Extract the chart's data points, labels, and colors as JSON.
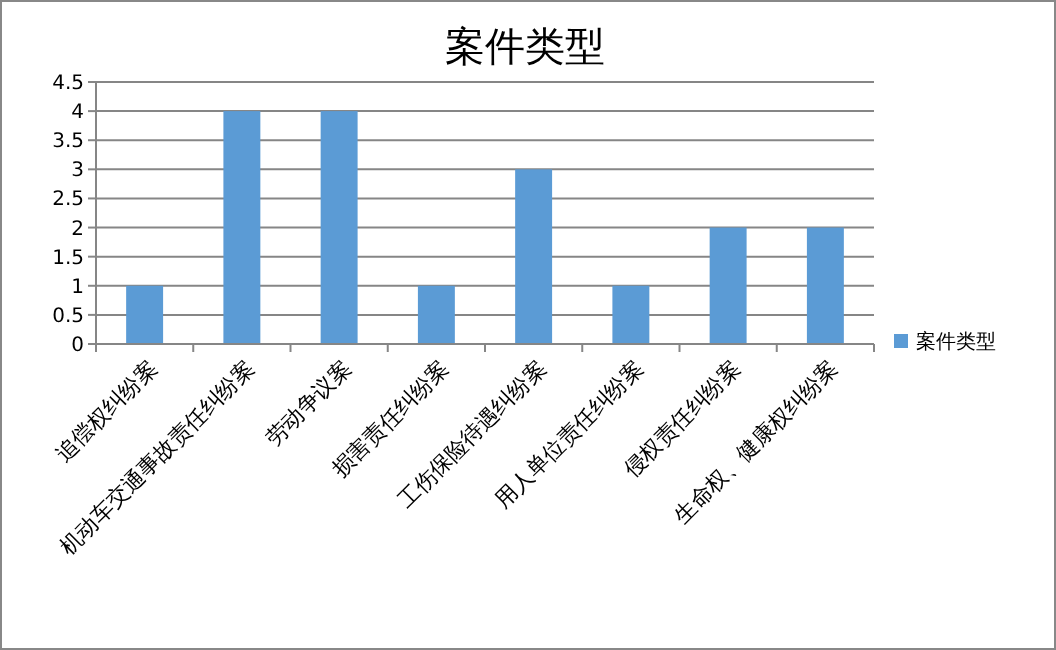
{
  "chart_data": {
    "type": "bar",
    "title": "案件类型",
    "categories": [
      "追偿权纠纷案",
      "机动车交通事故责任纠纷案",
      "劳动争议案",
      "损害责任纠纷案",
      "工伤保险待遇纠纷案",
      "用人单位责任纠纷案",
      "侵权责任纠纷案",
      "生命权、健康权纠纷案"
    ],
    "series": [
      {
        "name": "案件类型",
        "color": "#5b9bd5",
        "values": [
          1,
          4,
          4,
          1,
          3,
          1,
          2,
          2
        ]
      }
    ],
    "ylim": [
      0,
      4.5
    ],
    "yticks": [
      0,
      0.5,
      1,
      1.5,
      2,
      2.5,
      3,
      3.5,
      4,
      4.5
    ],
    "grid": "y",
    "legend": "right"
  }
}
